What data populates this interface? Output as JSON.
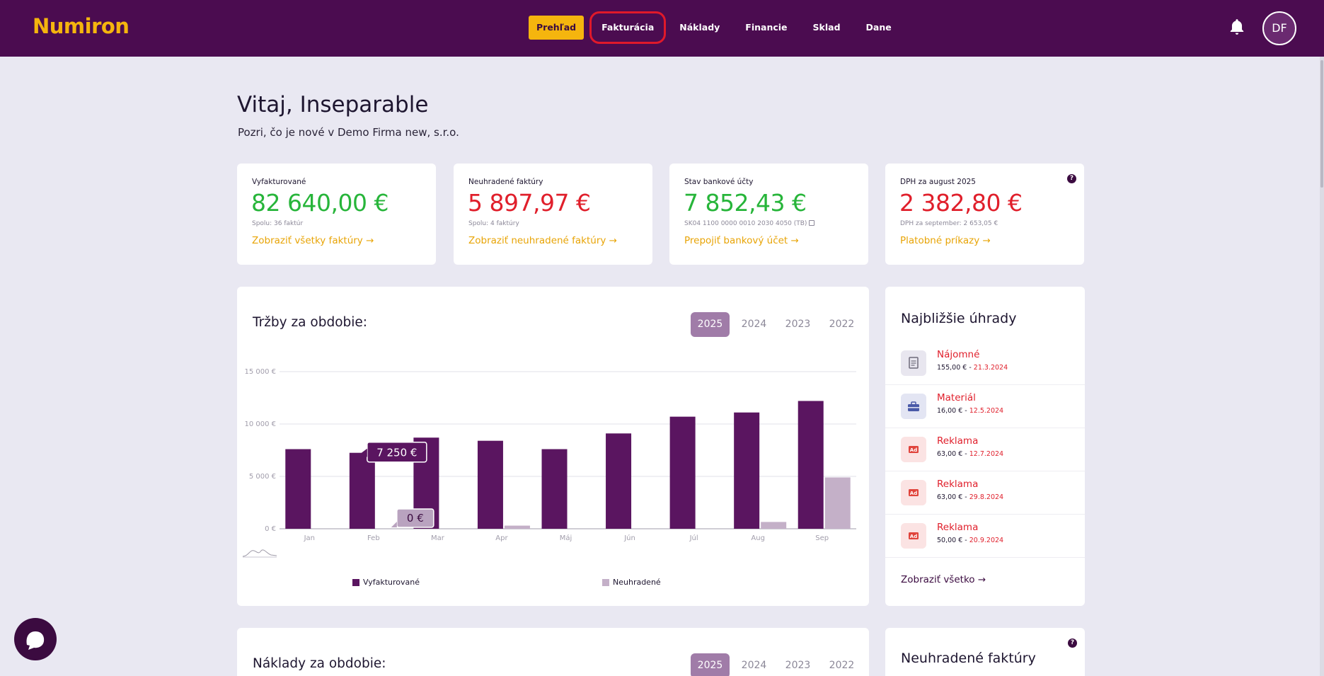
{
  "header": {
    "logo": "Numiron",
    "nav": [
      {
        "label": "Prehľad"
      },
      {
        "label": "Fakturácia"
      },
      {
        "label": "Náklady"
      },
      {
        "label": "Financie"
      },
      {
        "label": "Sklad"
      },
      {
        "label": "Dane"
      }
    ],
    "avatar_initials": "DF"
  },
  "welcome": {
    "title": "Vitaj, Inseparable",
    "subtitle": "Pozri, čo je nové v Demo Firma new, s.r.o."
  },
  "stats": [
    {
      "label": "Vyfakturované",
      "amount": "82 640,00 €",
      "sub": "Spolu: 36 faktúr",
      "link": "Zobraziť všetky faktúry →"
    },
    {
      "label": "Neuhradené faktúry",
      "amount": "5 897,97 €",
      "sub": "Spolu: 4 faktúry",
      "link": "Zobraziť neuhradené faktúry →"
    },
    {
      "label": "Stav bankové účty",
      "amount": "7 852,43 €",
      "sub": "SK04 1100 0000 0010 2030 4050 (TB)",
      "link": "Prepojiť bankový účet →"
    },
    {
      "label": "DPH za august 2025",
      "amount": "2 382,80 €",
      "sub": "DPH za september: 2 653,05 €",
      "link": "Platobné príkazy →"
    }
  ],
  "revenue": {
    "title": "Tržby za obdobie:",
    "years": [
      "2025",
      "2024",
      "2023",
      "2022"
    ],
    "selected_year": "2025",
    "tooltip_invoiced": "7 250 €",
    "tooltip_unpaid": "0 €"
  },
  "chart_data": {
    "type": "bar",
    "categories": [
      "Jan",
      "Feb",
      "Mar",
      "Apr",
      "Máj",
      "Jún",
      "Júl",
      "Aug",
      "Sep"
    ],
    "series": [
      {
        "name": "Vyfakturované",
        "values": [
          7600,
          7250,
          8700,
          8400,
          7600,
          9100,
          10700,
          11100,
          12200
        ]
      },
      {
        "name": "Neuhradené",
        "values": [
          0,
          0,
          0,
          300,
          0,
          0,
          0,
          650,
          4900
        ]
      }
    ],
    "ylim": [
      0,
      15000
    ],
    "yticks": [
      "0 €",
      "5 000 €",
      "10 000 €",
      "15 000 €"
    ],
    "ytick_values": [
      0,
      5000,
      10000,
      15000
    ],
    "grid": true,
    "legend_position": "bottom",
    "colors": {
      "invoiced": "#5a1560",
      "unpaid": "#c4b0c8"
    }
  },
  "upcoming": {
    "title": "Najbližšie úhrady",
    "items": [
      {
        "name": "Nájomné",
        "amount": "155,00 € - ",
        "date": "21.3.2024",
        "icon": "document-icon"
      },
      {
        "name": "Materiál",
        "amount": "16,00 € - ",
        "date": "12.5.2024",
        "icon": "toolbox-icon"
      },
      {
        "name": "Reklama",
        "amount": "63,00 € - ",
        "date": "12.7.2024",
        "icon": "ad-icon"
      },
      {
        "name": "Reklama",
        "amount": "63,00 € - ",
        "date": "29.8.2024",
        "icon": "ad-icon"
      },
      {
        "name": "Reklama",
        "amount": "50,00 € - ",
        "date": "20.9.2024",
        "icon": "ad-icon"
      }
    ],
    "link": "Zobraziť všetko →"
  },
  "costs": {
    "title": "Náklady za obdobie:",
    "years": [
      "2025",
      "2024",
      "2023",
      "2022"
    ]
  },
  "unpaid_invoices": {
    "title": "Neuhradené faktúry"
  }
}
